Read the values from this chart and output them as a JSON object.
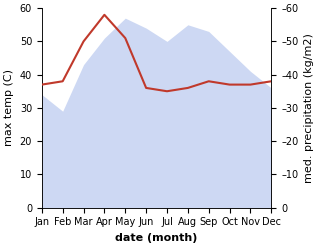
{
  "months": [
    "Jan",
    "Feb",
    "Mar",
    "Apr",
    "May",
    "Jun",
    "Jul",
    "Aug",
    "Sep",
    "Oct",
    "Nov",
    "Dec"
  ],
  "temperature": [
    37,
    38,
    50,
    58,
    51,
    36,
    35,
    36,
    38,
    37,
    37,
    38
  ],
  "precipitation": [
    34,
    29,
    43,
    51,
    57,
    54,
    50,
    55,
    53,
    47,
    41,
    36
  ],
  "temp_color": "#c0392b",
  "precip_fill_color": "#b8c8ee",
  "precip_fill_alpha": 0.7,
  "ylim_left": [
    0,
    60
  ],
  "ylim_right": [
    0,
    60
  ],
  "xlabel": "date (month)",
  "ylabel_left": "max temp (C)",
  "ylabel_right": "med. precipitation (kg/m2)",
  "bg_color": "#ffffff",
  "tick_fontsize": 7,
  "label_fontsize": 8,
  "right_tick_labels": [
    "0",
    "–10",
    "–20",
    "–30",
    "–40",
    "–50",
    "–60"
  ]
}
